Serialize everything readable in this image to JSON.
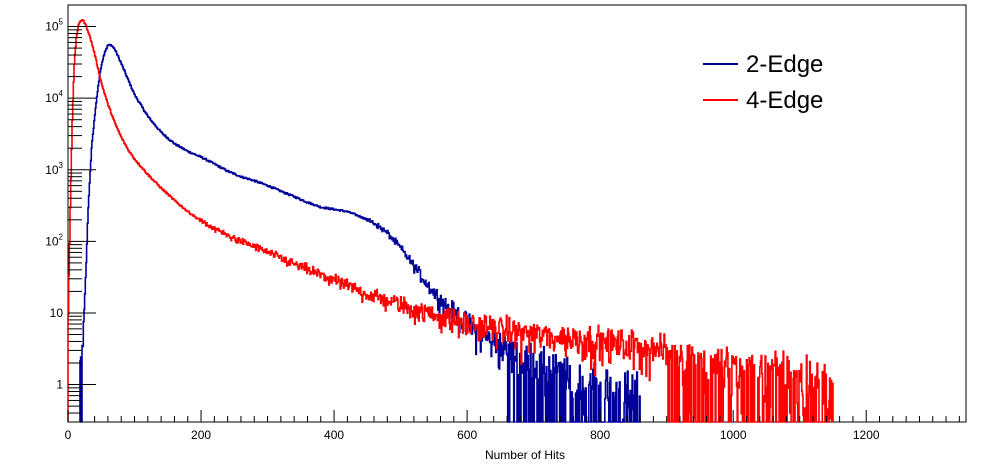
{
  "chart_data": {
    "type": "line",
    "title": "",
    "xlabel": "Number of Hits",
    "ylabel": "",
    "xlim": [
      0,
      1350
    ],
    "ylim": [
      0.3,
      200000
    ],
    "yscale": "log",
    "grid": false,
    "legend_position": "top-right",
    "x_ticks": [
      0,
      200,
      400,
      600,
      800,
      1000,
      1200
    ],
    "x_tick_labels": [
      "0",
      "200",
      "400",
      "600",
      "800",
      "1000",
      "1200"
    ],
    "y_ticks": [
      1,
      10,
      100,
      1000,
      10000,
      100000
    ],
    "y_tick_labels": [
      {
        "base": "1",
        "exp": ""
      },
      {
        "base": "10",
        "exp": ""
      },
      {
        "base": "10",
        "exp": "2"
      },
      {
        "base": "10",
        "exp": "3"
      },
      {
        "base": "10",
        "exp": "4"
      },
      {
        "base": "10",
        "exp": "5"
      }
    ],
    "series": [
      {
        "name": "2-Edge",
        "color": "#000099",
        "x": [
          18,
          22,
          26,
          30,
          35,
          40,
          45,
          50,
          55,
          60,
          65,
          70,
          80,
          90,
          100,
          120,
          140,
          160,
          180,
          200,
          220,
          240,
          260,
          280,
          300,
          320,
          340,
          360,
          380,
          400,
          420,
          440,
          460,
          480,
          500,
          520,
          540,
          560,
          580,
          600,
          620,
          640,
          660,
          680,
          700,
          720,
          740,
          760,
          780,
          800,
          820,
          840,
          860
        ],
        "y": [
          2,
          4,
          30,
          300,
          2000,
          6000,
          15000,
          30000,
          45000,
          55000,
          55000,
          48000,
          30000,
          18000,
          11000,
          5500,
          3300,
          2300,
          1800,
          1500,
          1200,
          950,
          800,
          700,
          600,
          500,
          420,
          350,
          300,
          280,
          260,
          220,
          180,
          130,
          80,
          45,
          25,
          15,
          10,
          7,
          5,
          4,
          3,
          2.5,
          2,
          1.6,
          1.3,
          1.1,
          1,
          0.9,
          0.8,
          0.7,
          0.6
        ]
      },
      {
        "name": "4-Edge",
        "color": "#ff0000",
        "x": [
          0,
          3,
          6,
          9,
          12,
          15,
          18,
          21,
          24,
          27,
          30,
          35,
          40,
          45,
          50,
          60,
          70,
          80,
          90,
          100,
          120,
          140,
          160,
          180,
          200,
          220,
          240,
          260,
          280,
          300,
          320,
          340,
          360,
          380,
          400,
          420,
          440,
          460,
          480,
          500,
          520,
          540,
          560,
          580,
          600,
          650,
          700,
          750,
          800,
          850,
          900,
          950,
          1000,
          1050,
          1100,
          1150
        ],
        "y": [
          10,
          300,
          5000,
          30000,
          70000,
          100000,
          120000,
          125000,
          115000,
          100000,
          85000,
          60000,
          40000,
          25000,
          16000,
          8000,
          4500,
          2800,
          1900,
          1400,
          850,
          550,
          370,
          260,
          190,
          150,
          120,
          100,
          85,
          70,
          58,
          48,
          40,
          34,
          28,
          24,
          20,
          17,
          15,
          13,
          11,
          10,
          9,
          8,
          7,
          6,
          5,
          4.5,
          4,
          3.5,
          3,
          2.5,
          2,
          1.7,
          1.3,
          1
        ]
      }
    ]
  }
}
